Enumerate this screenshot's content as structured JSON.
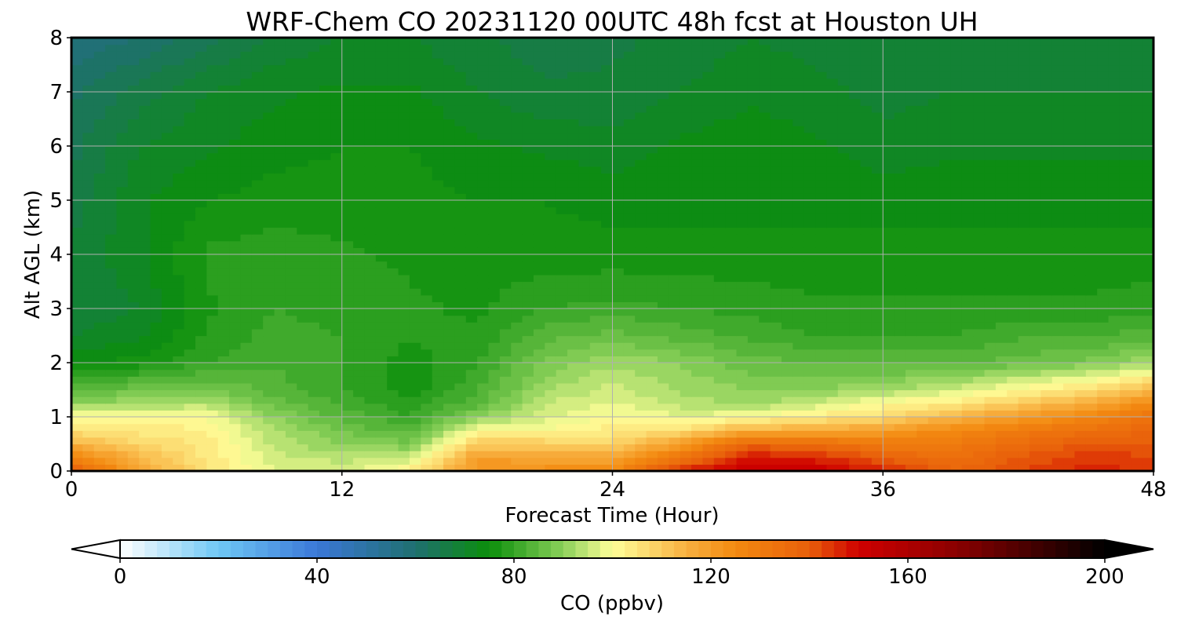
{
  "chart_data": {
    "type": "heatmap",
    "title": "WRF-Chem CO  20231120 00UTC 48h fcst at Houston UH",
    "xlabel": "Forecast Time (Hour)",
    "ylabel": "Alt AGL (km)",
    "xlim": [
      0,
      48
    ],
    "ylim": [
      0,
      8
    ],
    "xticks": [
      0,
      12,
      24,
      36,
      48
    ],
    "yticks": [
      0,
      1,
      2,
      3,
      4,
      5,
      6,
      7,
      8
    ],
    "grid": true,
    "x": [
      0,
      3,
      6,
      9,
      12,
      15,
      18,
      21,
      24,
      27,
      30,
      33,
      36,
      39,
      42,
      45,
      48
    ],
    "y": [
      0,
      0.25,
      0.5,
      0.75,
      1,
      1.25,
      1.5,
      2,
      2.5,
      3,
      4,
      5,
      6,
      7,
      8
    ],
    "z": [
      [
        140,
        118,
        106,
        98,
        96,
        103,
        122,
        124,
        125,
        148,
        153,
        152,
        146,
        138,
        142,
        146,
        145
      ],
      [
        128,
        114,
        104,
        96,
        94,
        95,
        120,
        118,
        118,
        132,
        148,
        146,
        140,
        134,
        140,
        144,
        143
      ],
      [
        115,
        108,
        104,
        94,
        90,
        88,
        110,
        110,
        108,
        120,
        138,
        136,
        130,
        130,
        136,
        140,
        140
      ],
      [
        106,
        104,
        103,
        93,
        87,
        84,
        100,
        100,
        104,
        106,
        116,
        116,
        120,
        126,
        130,
        134,
        138
      ],
      [
        101,
        100,
        100,
        90,
        84,
        80,
        90,
        97,
        100,
        98,
        100,
        104,
        106,
        114,
        120,
        126,
        134
      ],
      [
        90,
        92,
        94,
        86,
        82,
        78,
        84,
        95,
        98,
        94,
        92,
        95,
        101,
        104,
        110,
        116,
        126
      ],
      [
        84,
        87,
        88,
        84,
        80,
        76,
        82,
        92,
        96,
        92,
        90,
        90,
        92,
        96,
        101,
        106,
        114
      ],
      [
        74,
        76,
        80,
        82,
        80,
        76,
        80,
        88,
        92,
        90,
        86,
        85,
        84,
        84,
        86,
        88,
        92
      ],
      [
        70,
        72,
        78,
        81,
        80,
        78,
        78,
        84,
        86,
        84,
        82,
        80,
        80,
        80,
        82,
        82,
        84
      ],
      [
        68,
        70,
        77,
        80,
        79,
        78,
        77,
        80,
        81,
        80,
        79,
        78,
        78,
        78,
        78,
        78,
        79
      ],
      [
        68,
        72,
        78,
        79,
        78,
        77,
        76,
        76,
        76,
        76,
        76,
        76,
        76,
        76,
        76,
        76,
        76
      ],
      [
        66,
        72,
        75,
        76,
        76,
        76,
        75,
        75,
        74,
        74,
        74,
        74,
        74,
        74,
        74,
        74,
        74
      ],
      [
        64,
        70,
        72,
        74,
        75,
        75,
        73,
        72,
        71,
        73,
        74,
        73,
        71,
        72,
        72,
        72,
        72
      ],
      [
        62,
        66,
        70,
        72,
        73,
        73,
        70,
        68,
        68,
        70,
        72,
        71,
        69,
        70,
        70,
        70,
        70
      ],
      [
        58,
        60,
        64,
        68,
        70,
        70,
        68,
        66,
        67,
        68,
        70,
        69,
        68,
        69,
        68,
        68,
        68
      ]
    ],
    "colorbar": {
      "label": "CO  (ppbv)",
      "min": 0,
      "max": 200,
      "ticks": [
        0,
        40,
        80,
        120,
        160,
        200
      ],
      "extend": "both",
      "orientation": "horizontal",
      "colors": [
        {
          "v": 0,
          "c": "#ffffff"
        },
        {
          "v": 20,
          "c": "#6fc8f5"
        },
        {
          "v": 40,
          "c": "#3b78d8"
        },
        {
          "v": 60,
          "c": "#1f6f6f"
        },
        {
          "v": 75,
          "c": "#0b8f0b"
        },
        {
          "v": 90,
          "c": "#8bd05a"
        },
        {
          "v": 100,
          "c": "#ffff99"
        },
        {
          "v": 115,
          "c": "#f8b040"
        },
        {
          "v": 125,
          "c": "#f38a10"
        },
        {
          "v": 140,
          "c": "#e85f0a"
        },
        {
          "v": 150,
          "c": "#cf0000"
        },
        {
          "v": 170,
          "c": "#8a0000"
        },
        {
          "v": 200,
          "c": "#000000"
        }
      ]
    }
  }
}
